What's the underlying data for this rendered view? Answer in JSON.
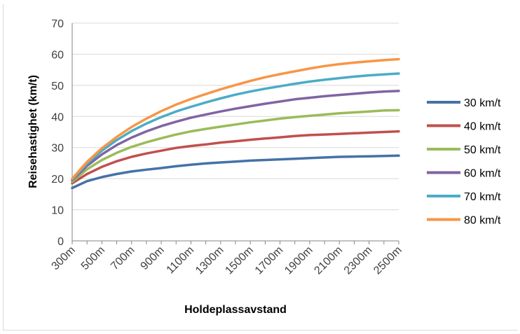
{
  "chart_data": {
    "type": "line",
    "title": "",
    "xlabel": "Holdeplassavstand",
    "ylabel": "Reisehastighet (km/t)",
    "ylim": [
      0,
      70
    ],
    "yticks": [
      0,
      10,
      20,
      30,
      40,
      50,
      60,
      70
    ],
    "grid": true,
    "legend_position": "right",
    "categories": [
      "300m",
      "400m",
      "500m",
      "600m",
      "700m",
      "800m",
      "900m",
      "1000m",
      "1100m",
      "1200m",
      "1300m",
      "1400m",
      "1500m",
      "1600m",
      "1700m",
      "1800m",
      "1900m",
      "2000m",
      "2100m",
      "2200m",
      "2300m",
      "2400m",
      "2500m"
    ],
    "x_tick_labels": [
      "300m",
      "500m",
      "700m",
      "900m",
      "1100m",
      "1300m",
      "1500m",
      "1700m",
      "1900m",
      "2100m",
      "2300m",
      "2500m"
    ],
    "series": [
      {
        "name": "30 km/t",
        "color": "#4572a7",
        "values": [
          17,
          19.2,
          20.5,
          21.5,
          22.3,
          22.9,
          23.4,
          24,
          24.5,
          24.9,
          25.2,
          25.5,
          25.8,
          26,
          26.2,
          26.4,
          26.6,
          26.8,
          27,
          27.1,
          27.2,
          27.3,
          27.4
        ]
      },
      {
        "name": "40 km/t",
        "color": "#c0504d",
        "values": [
          18.5,
          21.5,
          23.8,
          25.6,
          27,
          28.1,
          29,
          29.9,
          30.5,
          31,
          31.6,
          32,
          32.5,
          32.9,
          33.3,
          33.7,
          34,
          34.2,
          34.4,
          34.6,
          34.8,
          35,
          35.2
        ]
      },
      {
        "name": "50 km/t",
        "color": "#9bbb59",
        "values": [
          19,
          23,
          26,
          28.3,
          30.2,
          31.7,
          33,
          34.2,
          35.2,
          36,
          36.7,
          37.4,
          38.1,
          38.7,
          39.3,
          39.8,
          40.2,
          40.6,
          41,
          41.3,
          41.6,
          41.9,
          42
        ]
      },
      {
        "name": "60 km/t",
        "color": "#8064a2",
        "values": [
          19.5,
          24.1,
          27.8,
          30.8,
          33.2,
          35.2,
          36.9,
          38.3,
          39.6,
          40.6,
          41.6,
          42.5,
          43.3,
          44.1,
          44.8,
          45.5,
          46,
          46.5,
          46.9,
          47.3,
          47.7,
          48,
          48.2
        ]
      },
      {
        "name": "70 km/t",
        "color": "#4bacc6",
        "values": [
          19.8,
          24.8,
          29,
          32.4,
          35.3,
          37.7,
          39.8,
          41.6,
          43.1,
          44.5,
          45.8,
          47,
          48,
          48.9,
          49.7,
          50.5,
          51.2,
          51.8,
          52.3,
          52.8,
          53.2,
          53.5,
          53.8
        ]
      },
      {
        "name": "80 km/t",
        "color": "#f79646",
        "values": [
          20,
          25.4,
          29.8,
          33.4,
          36.6,
          39.3,
          41.7,
          43.8,
          45.6,
          47.2,
          48.7,
          50.1,
          51.4,
          52.6,
          53.6,
          54.5,
          55.4,
          56.2,
          56.8,
          57.3,
          57.7,
          58.1,
          58.4
        ]
      }
    ]
  }
}
